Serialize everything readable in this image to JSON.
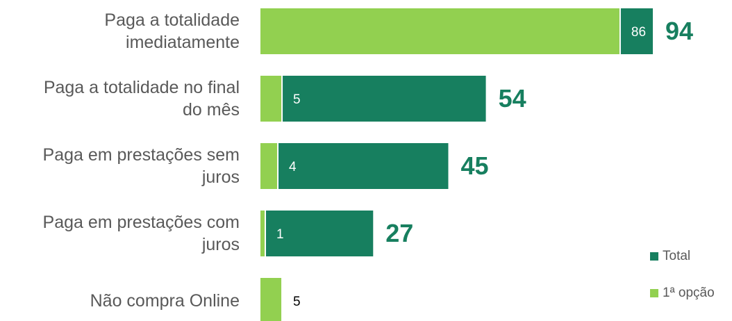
{
  "chart_data": {
    "type": "bar",
    "orientation": "horizontal",
    "categories": [
      "Paga a totalidade\nimediatamente",
      "Paga a totalidade no final\ndo mês",
      "Paga em prestações sem\njuros",
      "Paga em prestações com\njuros",
      "Não compra Online"
    ],
    "series": [
      {
        "name": "Total",
        "color": "#177f5f",
        "values": [
          94,
          54,
          45,
          27,
          null
        ]
      },
      {
        "name": "1ª opção",
        "color": "#92d050",
        "values": [
          86,
          5,
          4,
          1,
          5
        ]
      }
    ]
  }
}
